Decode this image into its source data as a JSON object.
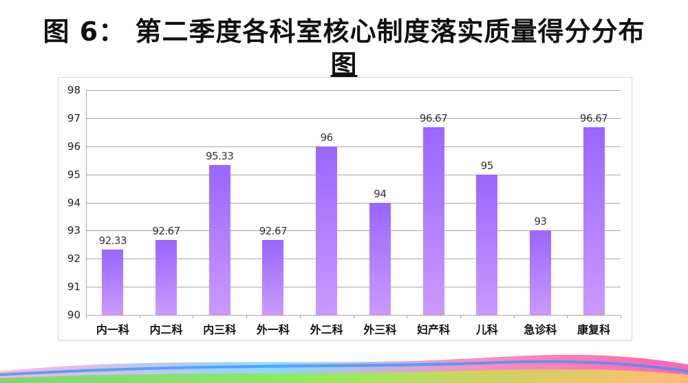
{
  "title": "图 6： 第二季度各科室核心制度落实质量得分分布图",
  "title_line1": "图 6： 第二季度各科室核心制度落实质量得分分布",
  "title_line2": "图",
  "chart_data": {
    "type": "bar",
    "title": "图 6： 第二季度各科室核心制度落实质量得分分布图",
    "xlabel": "",
    "ylabel": "",
    "categories": [
      "内一科",
      "内二科",
      "内三科",
      "外一科",
      "外二科",
      "外三科",
      "妇产科",
      "儿科",
      "急诊科",
      "康复科"
    ],
    "values": [
      92.33,
      92.67,
      95.33,
      92.67,
      96,
      94,
      96.67,
      95,
      93,
      96.67
    ],
    "value_labels": [
      "92.33",
      "92.67",
      "95.33",
      "92.67",
      "96",
      "94",
      "96.67",
      "95",
      "93",
      "96.67"
    ],
    "ylim": [
      90,
      98
    ],
    "yticks": [
      90,
      91,
      92,
      93,
      94,
      95,
      96,
      97,
      98
    ],
    "grid": true,
    "legend": "none",
    "bar_color_top": "#9966ff",
    "bar_color_bottom": "#cc99ff"
  }
}
